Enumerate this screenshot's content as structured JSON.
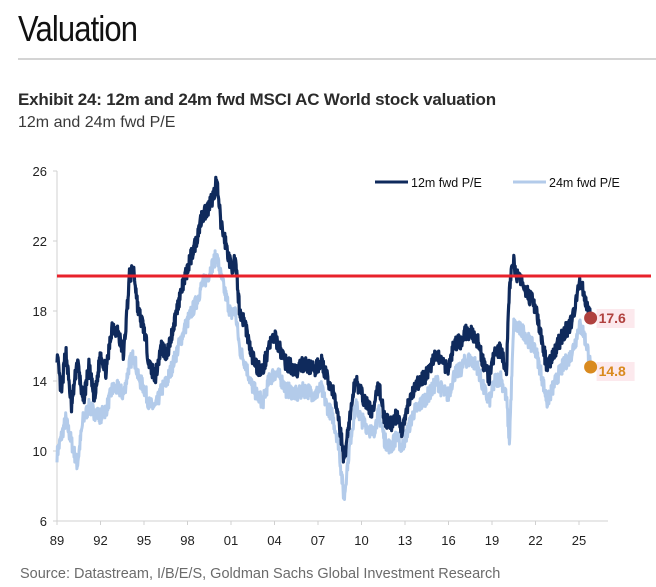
{
  "page": {
    "section_title": "Valuation",
    "exhibit_title": "Exhibit 24: 12m and 24m fwd MSCI AC World stock valuation",
    "exhibit_subtitle": "12m and 24m fwd P/E",
    "source": "Source: Datastream, I/B/E/S, Goldman Sachs Global Investment Research"
  },
  "colors": {
    "series_12m": "#0f2a5c",
    "series_24m": "#b3cbea",
    "reference_line": "#e8222b",
    "end_marker_12m": "#b0413e",
    "end_marker_24m": "#d98a1f",
    "end_label_bg": "#fbe3e8",
    "axis": "#d0d0d0"
  },
  "chart_data": {
    "type": "line",
    "title": "12m and 24m fwd P/E",
    "xlabel": "",
    "ylabel": "",
    "xlim": [
      1989,
      2027
    ],
    "ylim": [
      6,
      26
    ],
    "yticks": [
      6,
      10,
      14,
      18,
      22,
      26
    ],
    "xticks": [
      {
        "value": 1989,
        "label": "89"
      },
      {
        "value": 1992,
        "label": "92"
      },
      {
        "value": 1995,
        "label": "95"
      },
      {
        "value": 1998,
        "label": "98"
      },
      {
        "value": 2001,
        "label": "01"
      },
      {
        "value": 2004,
        "label": "04"
      },
      {
        "value": 2007,
        "label": "07"
      },
      {
        "value": 2010,
        "label": "10"
      },
      {
        "value": 2013,
        "label": "13"
      },
      {
        "value": 2016,
        "label": "16"
      },
      {
        "value": 2019,
        "label": "19"
      },
      {
        "value": 2022,
        "label": "22"
      },
      {
        "value": 2025,
        "label": "25"
      }
    ],
    "grid": false,
    "legend_position": "top-right",
    "reference_line": {
      "value": 20
    },
    "series": [
      {
        "name": "12m fwd P/E",
        "x": [
          1989.0,
          1989.3,
          1989.6,
          1990.0,
          1990.4,
          1990.8,
          1991.2,
          1991.6,
          1992.0,
          1992.4,
          1992.8,
          1993.2,
          1993.6,
          1994.0,
          1994.3,
          1994.6,
          1995.0,
          1995.4,
          1995.8,
          1996.2,
          1996.6,
          1997.0,
          1997.4,
          1997.8,
          1998.2,
          1998.6,
          1999.0,
          1999.4,
          1999.8,
          2000.0,
          2000.3,
          2000.6,
          2001.0,
          2001.3,
          2001.6,
          2002.0,
          2002.4,
          2002.8,
          2003.2,
          2003.6,
          2004.0,
          2004.4,
          2004.8,
          2005.2,
          2005.6,
          2006.0,
          2006.4,
          2006.8,
          2007.2,
          2007.6,
          2008.0,
          2008.4,
          2008.8,
          2009.0,
          2009.3,
          2009.6,
          2010.0,
          2010.4,
          2010.8,
          2011.2,
          2011.6,
          2012.0,
          2012.4,
          2012.8,
          2013.2,
          2013.6,
          2014.0,
          2014.4,
          2014.8,
          2015.2,
          2015.6,
          2016.0,
          2016.4,
          2016.8,
          2017.2,
          2017.6,
          2018.0,
          2018.4,
          2018.8,
          2019.2,
          2019.6,
          2020.0,
          2020.2,
          2020.5,
          2020.8,
          2021.2,
          2021.6,
          2022.0,
          2022.4,
          2022.8,
          2023.2,
          2023.6,
          2024.0,
          2024.4,
          2024.8,
          2025.0,
          2025.3,
          2025.6,
          2025.8
        ],
        "values": [
          15.5,
          13.2,
          15.8,
          12.5,
          15.2,
          12.8,
          14.8,
          12.9,
          15.6,
          14.5,
          17.2,
          16.8,
          15.5,
          20.0,
          20.3,
          18.0,
          17.0,
          14.8,
          14.3,
          16.0,
          15.5,
          17.0,
          18.6,
          19.8,
          21.0,
          22.0,
          23.5,
          23.8,
          24.6,
          25.5,
          23.0,
          22.0,
          20.5,
          20.8,
          18.0,
          17.2,
          15.5,
          14.8,
          14.6,
          16.0,
          16.5,
          15.8,
          15.0,
          14.8,
          14.6,
          15.0,
          14.8,
          14.6,
          15.2,
          14.2,
          13.5,
          12.0,
          9.5,
          10.8,
          12.5,
          14.2,
          13.2,
          12.6,
          12.2,
          13.8,
          11.8,
          11.5,
          12.0,
          11.2,
          12.5,
          13.4,
          14.0,
          14.3,
          14.8,
          15.6,
          15.0,
          14.8,
          16.2,
          16.2,
          16.8,
          16.7,
          16.3,
          15.0,
          14.2,
          15.6,
          15.8,
          14.5,
          19.5,
          20.8,
          19.8,
          19.5,
          18.8,
          18.2,
          16.4,
          14.8,
          15.4,
          16.2,
          16.8,
          17.2,
          18.5,
          19.8,
          19.2,
          18.0,
          17.6
        ]
      },
      {
        "name": "24m fwd P/E",
        "x": [
          1989.0,
          1989.3,
          1989.6,
          1990.0,
          1990.4,
          1990.8,
          1991.2,
          1991.6,
          1992.0,
          1992.4,
          1992.8,
          1993.2,
          1993.6,
          1994.0,
          1994.3,
          1994.6,
          1995.0,
          1995.4,
          1995.8,
          1996.2,
          1996.6,
          1997.0,
          1997.4,
          1997.8,
          1998.2,
          1998.6,
          1999.0,
          1999.4,
          1999.8,
          2000.0,
          2000.3,
          2000.6,
          2001.0,
          2001.3,
          2001.6,
          2002.0,
          2002.4,
          2002.8,
          2003.2,
          2003.6,
          2004.0,
          2004.4,
          2004.8,
          2005.2,
          2005.6,
          2006.0,
          2006.4,
          2006.8,
          2007.2,
          2007.6,
          2008.0,
          2008.4,
          2008.8,
          2009.0,
          2009.3,
          2009.6,
          2010.0,
          2010.4,
          2010.8,
          2011.2,
          2011.6,
          2012.0,
          2012.4,
          2012.8,
          2013.2,
          2013.6,
          2014.0,
          2014.4,
          2014.8,
          2015.2,
          2015.6,
          2016.0,
          2016.4,
          2016.8,
          2017.2,
          2017.6,
          2018.0,
          2018.4,
          2018.8,
          2019.2,
          2019.6,
          2020.0,
          2020.2,
          2020.5,
          2020.8,
          2021.2,
          2021.6,
          2022.0,
          2022.4,
          2022.8,
          2023.2,
          2023.6,
          2024.0,
          2024.4,
          2024.8,
          2025.0,
          2025.3,
          2025.6,
          2025.8
        ],
        "values": [
          9.8,
          10.8,
          11.8,
          10.5,
          9.2,
          11.8,
          12.5,
          12.2,
          12.0,
          12.4,
          13.5,
          13.6,
          13.2,
          15.0,
          15.5,
          14.2,
          13.6,
          12.6,
          12.5,
          13.5,
          14.0,
          15.0,
          16.0,
          17.0,
          17.8,
          18.5,
          19.5,
          20.0,
          20.8,
          21.2,
          20.0,
          19.0,
          17.8,
          18.0,
          15.8,
          15.0,
          13.8,
          13.2,
          12.8,
          14.0,
          14.5,
          14.2,
          13.5,
          13.4,
          13.2,
          13.5,
          13.4,
          13.2,
          13.6,
          12.6,
          12.0,
          10.5,
          7.2,
          9.0,
          11.0,
          12.6,
          11.8,
          11.4,
          11.0,
          12.2,
          10.6,
          10.2,
          10.8,
          10.2,
          11.2,
          12.2,
          12.6,
          13.0,
          13.4,
          14.0,
          13.4,
          13.2,
          14.4,
          14.6,
          15.2,
          15.2,
          14.8,
          13.6,
          12.8,
          14.0,
          14.2,
          13.0,
          10.5,
          17.2,
          17.0,
          16.8,
          16.2,
          15.8,
          14.4,
          12.8,
          13.6,
          14.4,
          15.0,
          15.4,
          16.4,
          17.2,
          16.8,
          15.8,
          14.8
        ]
      }
    ],
    "end_labels": [
      {
        "series": "12m fwd P/E",
        "value": 17.6,
        "label": "17.6"
      },
      {
        "series": "24m fwd P/E",
        "value": 14.8,
        "label": "14.8"
      }
    ]
  }
}
